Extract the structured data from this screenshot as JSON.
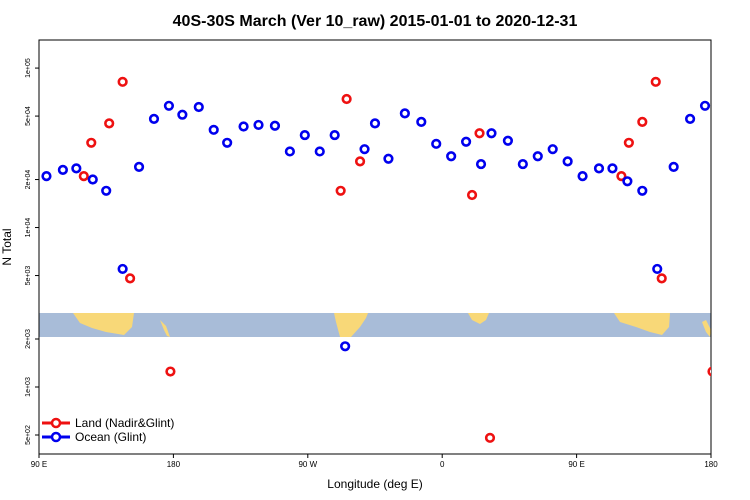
{
  "chart_data": {
    "type": "scatter",
    "title": "40S-30S March (Ver 10_raw)   2015-01-01 to 2020-12-31",
    "xlabel": "Longitude (deg E)",
    "ylabel": "N Total",
    "y_scale": "log",
    "ylim": [
      380,
      150000
    ],
    "x_ticks": [
      {
        "x": 0,
        "label": "90 E"
      },
      {
        "x": 90,
        "label": "180"
      },
      {
        "x": 180,
        "label": "90 W"
      },
      {
        "x": 270,
        "label": "0"
      },
      {
        "x": 360,
        "label": "90 E"
      },
      {
        "x": 450,
        "label": "180"
      }
    ],
    "y_ticks": [
      {
        "v": 500,
        "label": "5e+02"
      },
      {
        "v": 1000,
        "label": "1e+03"
      },
      {
        "v": 2000,
        "label": "2e+03"
      },
      {
        "v": 5000,
        "label": "5e+03"
      },
      {
        "v": 10000,
        "label": "1e+04"
      },
      {
        "v": 20000,
        "label": "2e+04"
      },
      {
        "v": 50000,
        "label": "5e+04"
      },
      {
        "v": 100000,
        "label": "1e+05"
      }
    ],
    "legend_position": "bottom-left",
    "series": [
      {
        "name": "Land (Nadir&Glint)",
        "color": "#ee1111",
        "points": [
          [
            30,
            21000
          ],
          [
            35,
            34000
          ],
          [
            47,
            45000
          ],
          [
            56,
            82000
          ],
          [
            61,
            4800
          ],
          [
            88,
            1250
          ],
          [
            202,
            17000
          ],
          [
            206,
            64000
          ],
          [
            215,
            26000
          ],
          [
            290,
            16000
          ],
          [
            295,
            39000
          ],
          [
            302,
            480
          ],
          [
            390,
            21000
          ],
          [
            395,
            34000
          ],
          [
            404,
            46000
          ],
          [
            413,
            82000
          ],
          [
            417,
            4800
          ],
          [
            451,
            1250
          ]
        ]
      },
      {
        "name": "Ocean (Glint)",
        "color": "#0000ee",
        "points": [
          [
            5,
            21000
          ],
          [
            16,
            23000
          ],
          [
            25,
            23500
          ],
          [
            36,
            20000
          ],
          [
            45,
            17000
          ],
          [
            56,
            5500
          ],
          [
            67,
            24000
          ],
          [
            77,
            48000
          ],
          [
            87,
            58000
          ],
          [
            96,
            51000
          ],
          [
            107,
            57000
          ],
          [
            117,
            41000
          ],
          [
            126,
            34000
          ],
          [
            137,
            43000
          ],
          [
            147,
            44000
          ],
          [
            158,
            43500
          ],
          [
            168,
            30000
          ],
          [
            178,
            38000
          ],
          [
            188,
            30000
          ],
          [
            198,
            38000
          ],
          [
            205,
            1800
          ],
          [
            218,
            31000
          ],
          [
            225,
            45000
          ],
          [
            234,
            27000
          ],
          [
            245,
            52000
          ],
          [
            256,
            46000
          ],
          [
            266,
            33500
          ],
          [
            276,
            28000
          ],
          [
            286,
            34500
          ],
          [
            296,
            25000
          ],
          [
            303,
            39000
          ],
          [
            314,
            35000
          ],
          [
            324,
            25000
          ],
          [
            334,
            28000
          ],
          [
            344,
            31000
          ],
          [
            354,
            26000
          ],
          [
            364,
            21000
          ],
          [
            375,
            23500
          ],
          [
            384,
            23500
          ],
          [
            394,
            19500
          ],
          [
            404,
            17000
          ],
          [
            414,
            5500
          ],
          [
            425,
            24000
          ],
          [
            436,
            48000
          ],
          [
            446,
            58000
          ]
        ]
      }
    ]
  }
}
